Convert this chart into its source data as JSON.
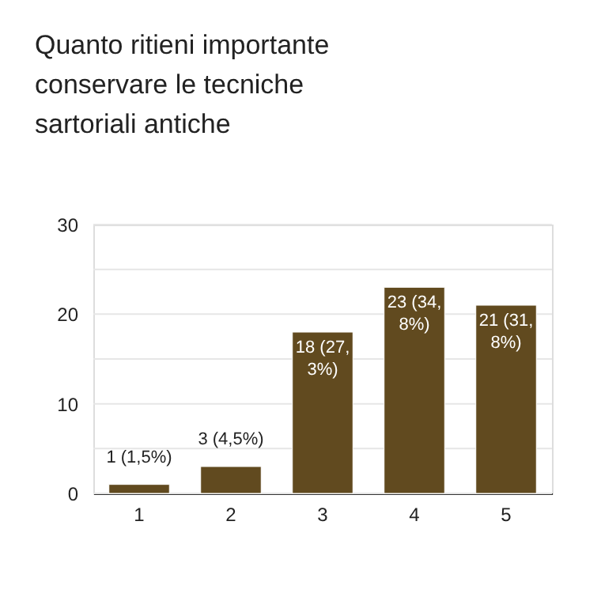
{
  "chart_data": {
    "type": "bar",
    "title": "Quanto ritieni importante conservare le tecniche sartoriali antiche",
    "categories": [
      "1",
      "2",
      "3",
      "4",
      "5"
    ],
    "values": [
      1,
      3,
      18,
      23,
      21
    ],
    "value_labels": [
      "1 (1,5%)",
      "3 (4,5%)",
      "18 (27,3%)",
      "23 (34,8%)",
      "21 (31,8%)"
    ],
    "color": "#614a1f",
    "ylim": [
      0,
      30
    ],
    "yticks": [
      0,
      {
        "value": 5,
        "label": null
      },
      10,
      {
        "value": 15,
        "label": null
      },
      20,
      {
        "value": 25,
        "label": null
      },
      30
    ],
    "grid": "y"
  }
}
